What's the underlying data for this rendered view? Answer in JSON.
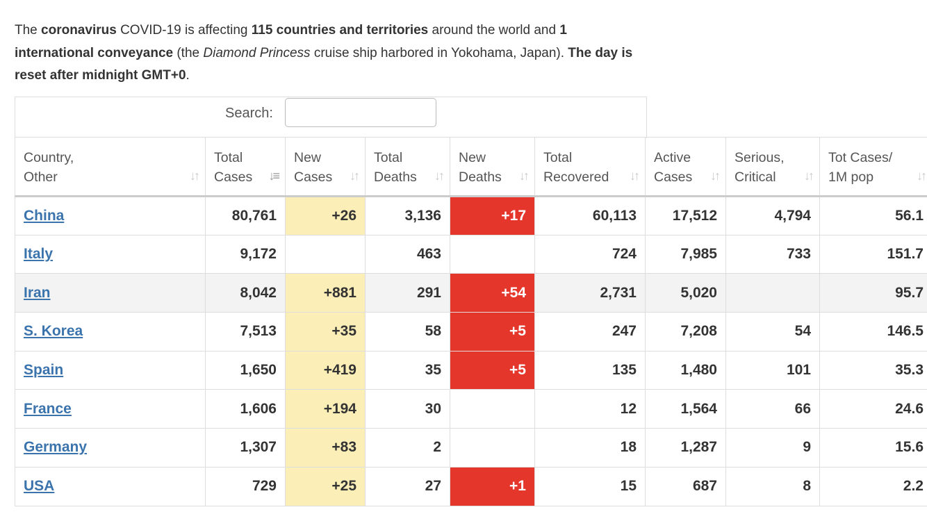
{
  "intro": {
    "t1": "The ",
    "b1": "coronavirus",
    "t2": " COVID-19 is affecting ",
    "b2": "115 countries and territories",
    "t3": " around the world and ",
    "b3": "1 international conveyance",
    "t4": " (the ",
    "i1": "Diamond Princess",
    "t5": " cruise ship harbored in Yokohama, Japan). ",
    "b4": "The day is reset after midnight GMT+0",
    "t6": "."
  },
  "search": {
    "label": "Search:",
    "value": ""
  },
  "table": {
    "headers": [
      {
        "line1": "Country,",
        "line2": "Other"
      },
      {
        "line1": "Total",
        "line2": "Cases"
      },
      {
        "line1": "New",
        "line2": "Cases"
      },
      {
        "line1": "Total",
        "line2": "Deaths"
      },
      {
        "line1": "New",
        "line2": "Deaths"
      },
      {
        "line1": "Total",
        "line2": "Recovered"
      },
      {
        "line1": "Active",
        "line2": "Cases"
      },
      {
        "line1": "Serious,",
        "line2": "Critical"
      },
      {
        "line1": "Tot Cases/",
        "line2": "1M pop"
      }
    ],
    "sorted_column": "Total Cases",
    "rows": [
      {
        "country": "China",
        "total_cases": "80,761",
        "new_cases": "+26",
        "total_deaths": "3,136",
        "new_deaths": "+17",
        "total_recovered": "60,113",
        "active_cases": "17,512",
        "serious": "4,794",
        "per_million": "56.1"
      },
      {
        "country": "Italy",
        "total_cases": "9,172",
        "new_cases": "",
        "total_deaths": "463",
        "new_deaths": "",
        "total_recovered": "724",
        "active_cases": "7,985",
        "serious": "733",
        "per_million": "151.7"
      },
      {
        "country": "Iran",
        "total_cases": "8,042",
        "new_cases": "+881",
        "total_deaths": "291",
        "new_deaths": "+54",
        "total_recovered": "2,731",
        "active_cases": "5,020",
        "serious": "",
        "per_million": "95.7"
      },
      {
        "country": "S. Korea",
        "total_cases": "7,513",
        "new_cases": "+35",
        "total_deaths": "58",
        "new_deaths": "+5",
        "total_recovered": "247",
        "active_cases": "7,208",
        "serious": "54",
        "per_million": "146.5"
      },
      {
        "country": "Spain",
        "total_cases": "1,650",
        "new_cases": "+419",
        "total_deaths": "35",
        "new_deaths": "+5",
        "total_recovered": "135",
        "active_cases": "1,480",
        "serious": "101",
        "per_million": "35.3"
      },
      {
        "country": "France",
        "total_cases": "1,606",
        "new_cases": "+194",
        "total_deaths": "30",
        "new_deaths": "",
        "total_recovered": "12",
        "active_cases": "1,564",
        "serious": "66",
        "per_million": "24.6"
      },
      {
        "country": "Germany",
        "total_cases": "1,307",
        "new_cases": "+83",
        "total_deaths": "2",
        "new_deaths": "",
        "total_recovered": "18",
        "active_cases": "1,287",
        "serious": "9",
        "per_million": "15.6"
      },
      {
        "country": "USA",
        "total_cases": "729",
        "new_cases": "+25",
        "total_deaths": "27",
        "new_deaths": "+1",
        "total_recovered": "15",
        "active_cases": "687",
        "serious": "8",
        "per_million": "2.2"
      }
    ]
  },
  "colors": {
    "link": "#3b74ad",
    "new_cases_highlight": "#fbeeb7",
    "new_deaths_highlight": "#e5362c",
    "row_shade": "#f3f3f3"
  }
}
